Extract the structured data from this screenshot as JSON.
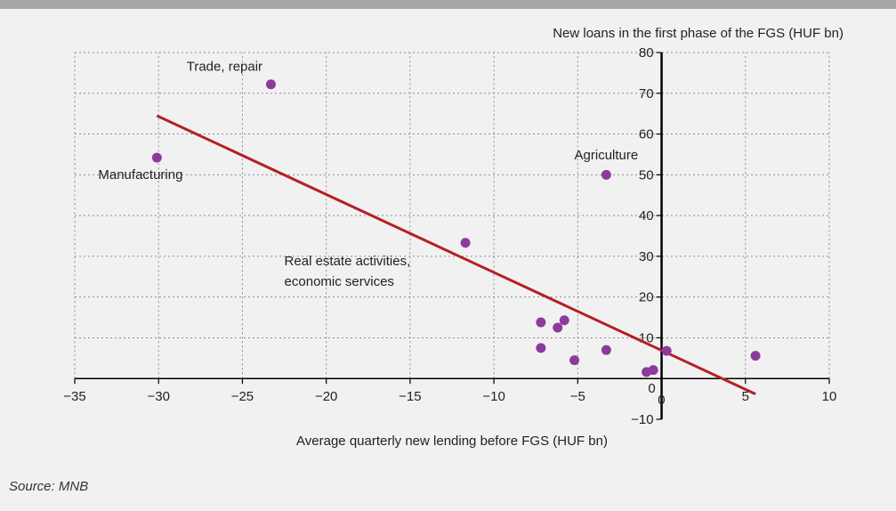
{
  "source": "Source: MNB",
  "chart_data": {
    "type": "scatter",
    "title": "",
    "ylabel": "New loans in the first phase of the FGS (HUF bn)",
    "xlabel": "Average quarterly new lending before FGS (HUF bn)",
    "xlim": [
      -35,
      10
    ],
    "ylim": [
      -10,
      80
    ],
    "xticks": [
      "−35",
      "−30",
      "−25",
      "−20",
      "−15",
      "−10",
      "−5",
      "0",
      "5",
      "10"
    ],
    "yticks": [
      "−10",
      "0",
      "10",
      "20",
      "30",
      "40",
      "50",
      "60",
      "70",
      "80"
    ],
    "grid": true,
    "point_color": "#8e3a9d",
    "trend_color": "#b42025",
    "points": [
      {
        "x": -30.1,
        "y": 54.2
      },
      {
        "x": -23.3,
        "y": 72.2
      },
      {
        "x": -11.7,
        "y": 33.3
      },
      {
        "x": -3.3,
        "y": 50.0
      },
      {
        "x": -7.2,
        "y": 13.8
      },
      {
        "x": -7.2,
        "y": 7.5
      },
      {
        "x": -6.2,
        "y": 12.5
      },
      {
        "x": -5.8,
        "y": 14.3
      },
      {
        "x": -5.2,
        "y": 4.5
      },
      {
        "x": -3.3,
        "y": 7.0
      },
      {
        "x": -0.9,
        "y": 1.6
      },
      {
        "x": -0.5,
        "y": 2.1
      },
      {
        "x": 0.3,
        "y": 6.8
      },
      {
        "x": 5.6,
        "y": 5.6
      }
    ],
    "trendline": {
      "x": [
        -30.1,
        5.6
      ],
      "y": [
        64.5,
        -3.8
      ]
    },
    "annotations": [
      {
        "text": "Trade, repair",
        "x": -23.8,
        "y": 75.5,
        "anchor": "end"
      },
      {
        "text": "Manufacturing",
        "x": -33.6,
        "y": 49.0,
        "anchor": "start"
      },
      {
        "text": "Agriculture",
        "x": -3.3,
        "y": 53.8,
        "anchor": "middle"
      },
      {
        "text": "Real estate activities,",
        "x": -22.5,
        "y": 27.8,
        "anchor": "start"
      },
      {
        "text": "economic services",
        "x": -22.5,
        "y": 22.8,
        "anchor": "start"
      }
    ]
  }
}
